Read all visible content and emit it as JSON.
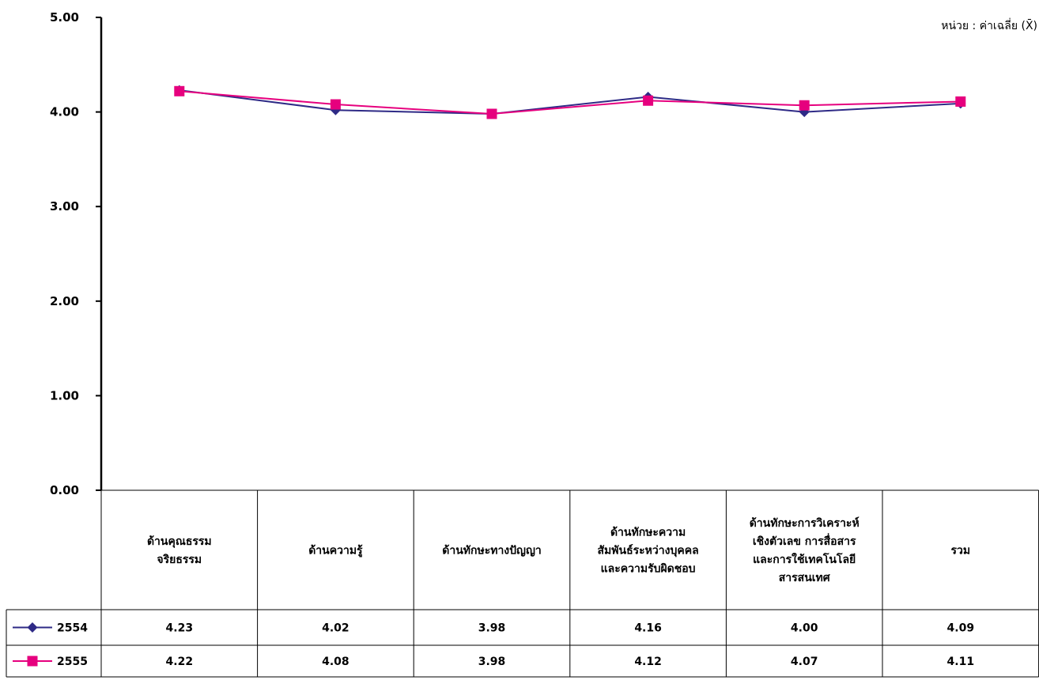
{
  "unit_label": "หน่วย : ค่าเฉลี่ย (X̄)",
  "chart_data": {
    "type": "line",
    "title": "",
    "xlabel": "",
    "ylabel": "",
    "ylim": [
      0,
      5
    ],
    "yticks": [
      "0.00",
      "1.00",
      "2.00",
      "3.00",
      "4.00",
      "5.00"
    ],
    "grid": false,
    "legend": "data-table-left",
    "categories": [
      [
        "ด้านคุณธรรม",
        "จริยธรรม"
      ],
      [
        "ด้านความรู้"
      ],
      [
        "ด้านทักษะทางปัญญา"
      ],
      [
        "ด้านทักษะความ",
        "สัมพันธ์ระหว่างบุคคล",
        "และความรับผิดชอบ"
      ],
      [
        "ด้านทักษะการวิเคราะห์",
        "เชิงตัวเลข การสื่อสาร",
        "และการใช้เทคโนโลยี",
        "สารสนเทศ"
      ],
      [
        "รวม"
      ]
    ],
    "series": [
      {
        "name": "2554",
        "color": "#2e2a86",
        "marker": "diamond",
        "values": [
          4.23,
          4.02,
          3.98,
          4.16,
          4.0,
          4.09
        ],
        "labels": [
          "4.23",
          "4.02",
          "3.98",
          "4.16",
          "4.00",
          "4.09"
        ]
      },
      {
        "name": "2555",
        "color": "#e6007e",
        "marker": "square",
        "values": [
          4.22,
          4.08,
          3.98,
          4.12,
          4.07,
          4.11
        ],
        "labels": [
          "4.22",
          "4.08",
          "3.98",
          "4.12",
          "4.07",
          "4.11"
        ]
      }
    ]
  }
}
